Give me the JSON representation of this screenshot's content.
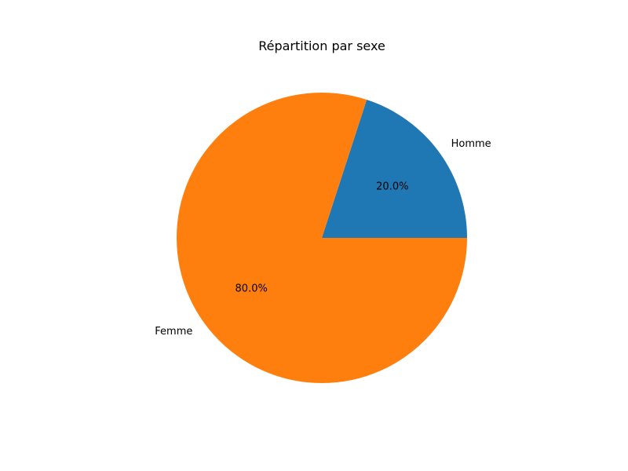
{
  "chart_data": {
    "type": "pie",
    "title": "Répartition par sexe",
    "slices": [
      {
        "label": "Homme",
        "value": 20.0,
        "pct_label": "20.0%",
        "color": "#1f77b4"
      },
      {
        "label": "Femme",
        "value": 80.0,
        "pct_label": "80.0%",
        "color": "#ff7f0e"
      }
    ],
    "start_angle_deg": 0,
    "direction": "counterclockwise",
    "legend": "none"
  }
}
